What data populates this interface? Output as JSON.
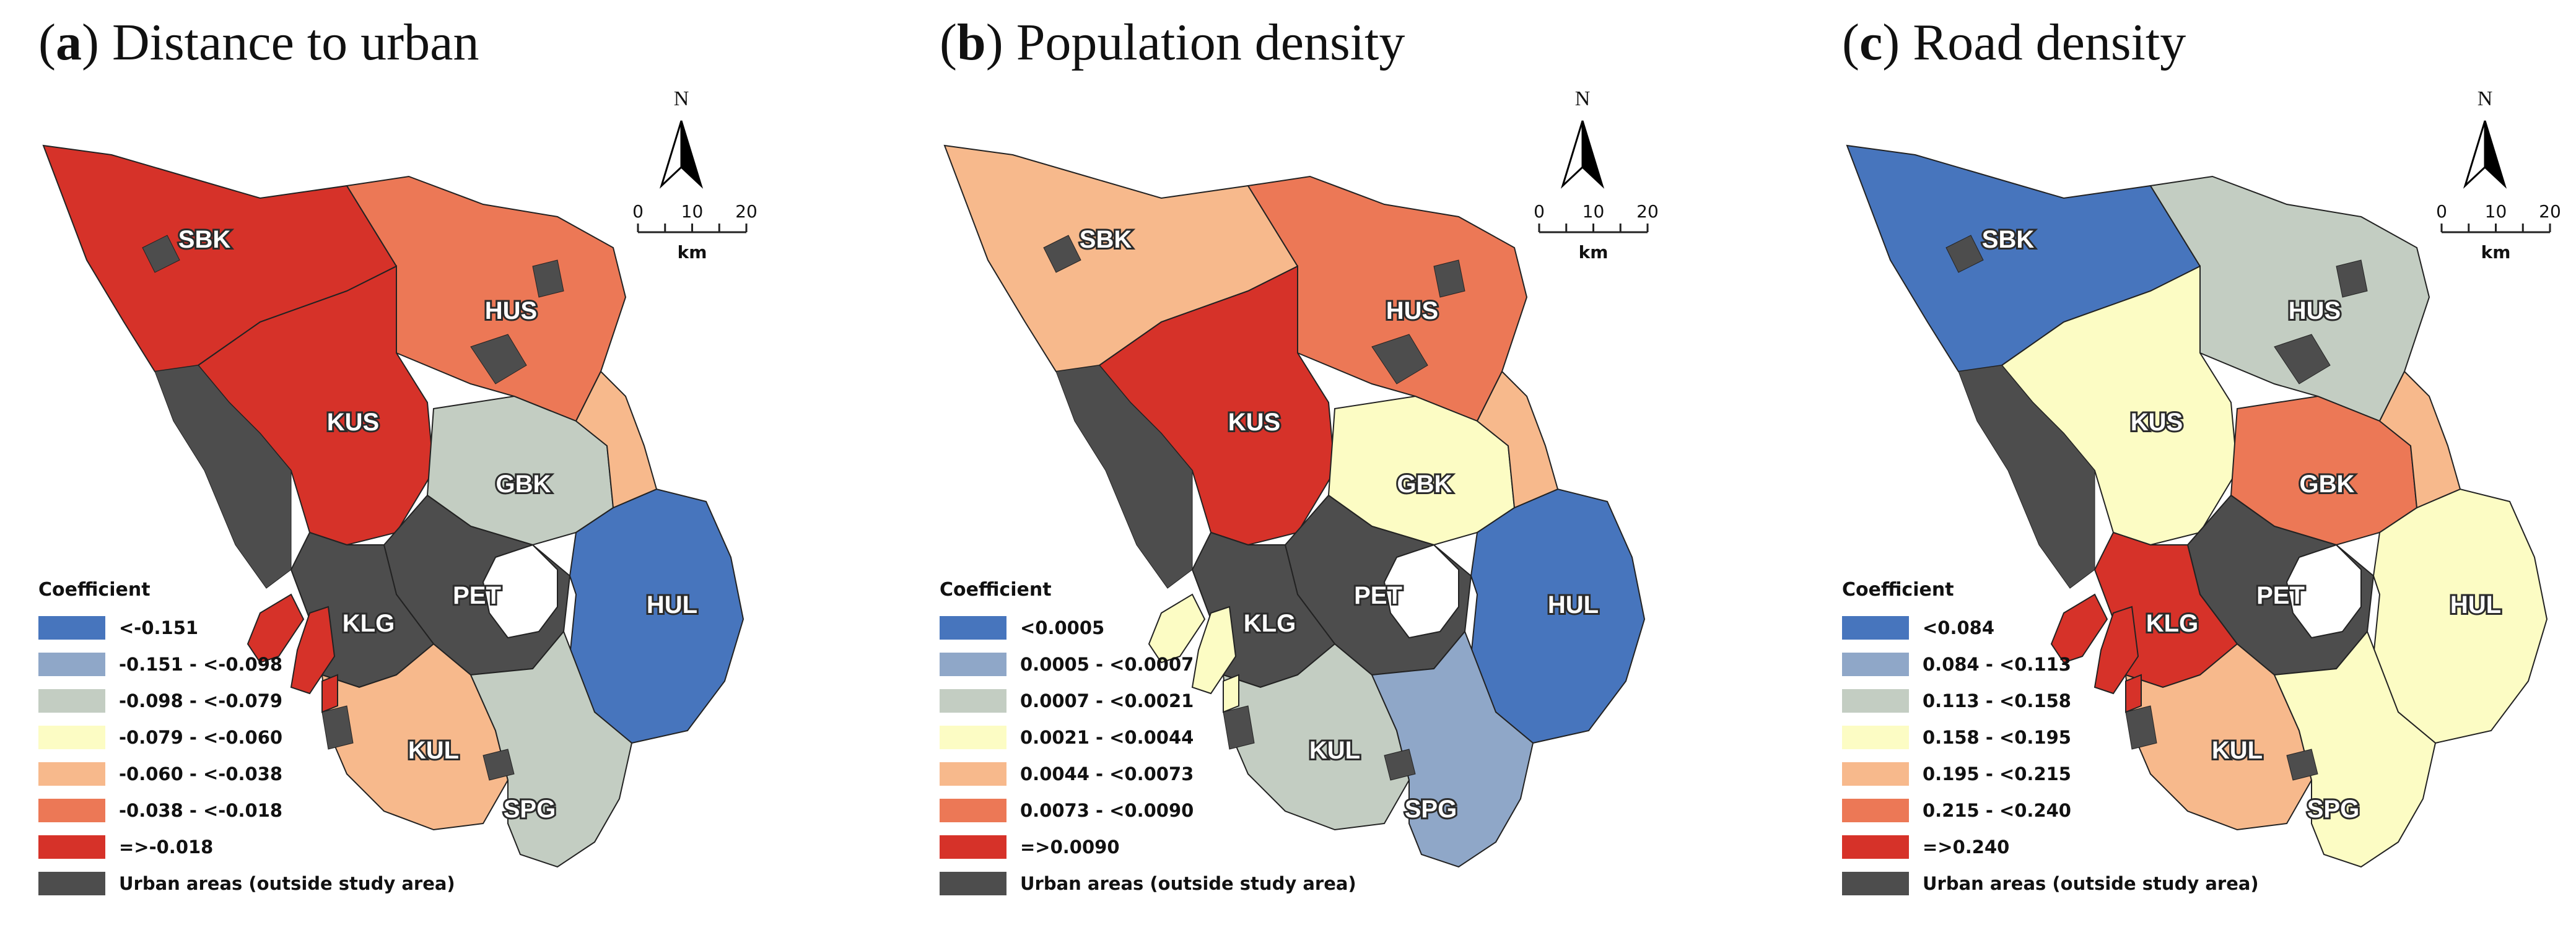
{
  "colors": {
    "urban": "#4d4d4d",
    "lake": "#ffffff",
    "boundary": "#222222"
  },
  "panels": [
    {
      "letter": "a",
      "title": "Distance to urban",
      "legend_title": "Coefficient",
      "classes": [
        {
          "label": "<-0.151",
          "color": "#4775bd"
        },
        {
          "label": "-0.151 - <-0.098",
          "color": "#8fa7c8"
        },
        {
          "label": "-0.098 - <-0.079",
          "color": "#c3cdc2"
        },
        {
          "label": "-0.079 - <-0.060",
          "color": "#fcfcc4"
        },
        {
          "label": "-0.060 - <-0.038",
          "color": "#f7b98c"
        },
        {
          "label": "-0.038 - <-0.018",
          "color": "#ec7856"
        },
        {
          "label": "=>-0.018",
          "color": "#d63229"
        },
        {
          "label": "Urban areas (outside study area)",
          "color": "#4d4d4d"
        }
      ],
      "district_class": {
        "SBK": 6,
        "HUS": 5,
        "KUS": 6,
        "GBK": 2,
        "PET": 7,
        "KLG": 7,
        "HUL": 0,
        "KUL": 4,
        "SPG": 2,
        "east": 4,
        "islands": 6
      }
    },
    {
      "letter": "b",
      "title": "Population density",
      "legend_title": "Coefficient",
      "classes": [
        {
          "label": "<0.0005",
          "color": "#4775bd"
        },
        {
          "label": "0.0005 - <0.0007",
          "color": "#8fa7c8"
        },
        {
          "label": "0.0007 - <0.0021",
          "color": "#c3cdc2"
        },
        {
          "label": "0.0021 - <0.0044",
          "color": "#fcfcc4"
        },
        {
          "label": "0.0044 - <0.0073",
          "color": "#f7b98c"
        },
        {
          "label": "0.0073 - <0.0090",
          "color": "#ec7856"
        },
        {
          "label": "=>0.0090",
          "color": "#d63229"
        },
        {
          "label": "Urban areas (outside study area)",
          "color": "#4d4d4d"
        }
      ],
      "district_class": {
        "SBK": 4,
        "HUS": 5,
        "KUS": 6,
        "GBK": 3,
        "PET": 7,
        "KLG": 7,
        "HUL": 0,
        "KUL": 2,
        "SPG": 1,
        "east": 4,
        "islands": 3
      }
    },
    {
      "letter": "c",
      "title": "Road density",
      "legend_title": "Coefficient",
      "classes": [
        {
          "label": "<0.084",
          "color": "#4775bd"
        },
        {
          "label": "0.084 - <0.113",
          "color": "#8fa7c8"
        },
        {
          "label": "0.113 - <0.158",
          "color": "#c3cdc2"
        },
        {
          "label": "0.158 - <0.195",
          "color": "#fcfcc4"
        },
        {
          "label": "0.195 - <0.215",
          "color": "#f7b98c"
        },
        {
          "label": "0.215 - <0.240",
          "color": "#ec7856"
        },
        {
          "label": "=>0.240",
          "color": "#d63229"
        },
        {
          "label": "Urban areas (outside study area)",
          "color": "#4d4d4d"
        }
      ],
      "district_class": {
        "SBK": 0,
        "HUS": 2,
        "KUS": 3,
        "GBK": 5,
        "PET": 7,
        "KLG": 6,
        "HUL": 3,
        "KUL": 4,
        "SPG": 3,
        "east": 4,
        "islands": 6
      }
    }
  ],
  "district_labels": [
    "SBK",
    "HUS",
    "KUS",
    "GBK",
    "PET",
    "KLG",
    "HUL",
    "KUL",
    "SPG"
  ],
  "north_arrow": {
    "label": "N"
  },
  "scale_bar": {
    "ticks": [
      "0",
      "10",
      "20"
    ],
    "unit": "km"
  }
}
